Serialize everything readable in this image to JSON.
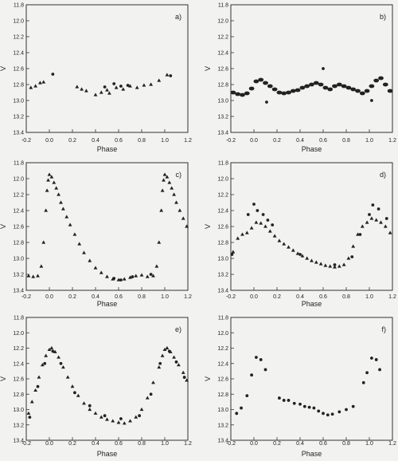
{
  "chart_data": [
    {
      "type": "scatter",
      "panel_label": "a)",
      "xlabel": "Phase",
      "ylabel": "V",
      "xlim": [
        -0.2,
        1.2
      ],
      "ylim": [
        13.4,
        11.8
      ],
      "y_inverted": true,
      "xticks": [
        "-0.2",
        "0.0",
        "0.2",
        "0.4",
        "0.6",
        "0.8",
        "1.0",
        "1.2"
      ],
      "yticks": [
        "11.8",
        "12.0",
        "12.2",
        "12.4",
        "12.6",
        "12.8",
        "13.0",
        "13.2",
        "13.4"
      ],
      "series": [
        {
          "marker": "triangle",
          "x": [
            -0.16,
            -0.12,
            -0.08,
            -0.05,
            0.24,
            0.28,
            0.32,
            0.4,
            0.45,
            0.5,
            0.52,
            0.58,
            0.64,
            0.7,
            0.76,
            0.82,
            0.88,
            0.95,
            1.02
          ],
          "y": [
            12.84,
            12.82,
            12.78,
            12.77,
            12.83,
            12.86,
            12.88,
            12.93,
            12.9,
            12.87,
            12.91,
            12.84,
            12.86,
            12.82,
            12.84,
            12.81,
            12.8,
            12.75,
            12.68
          ]
        },
        {
          "marker": "dot",
          "x": [
            0.03,
            0.48,
            0.56,
            0.62,
            0.68,
            1.05
          ],
          "y": [
            12.67,
            12.83,
            12.79,
            12.82,
            12.81,
            12.69
          ]
        }
      ]
    },
    {
      "type": "scatter",
      "panel_label": "b)",
      "xlabel": "Phase",
      "ylabel": "V",
      "xlim": [
        -0.2,
        1.2
      ],
      "ylim": [
        13.4,
        11.8
      ],
      "y_inverted": true,
      "xticks": [
        "-0.2",
        "0.0",
        "0.2",
        "0.4",
        "0.6",
        "0.8",
        "1.0",
        "1.2"
      ],
      "yticks": [
        "11.8",
        "12.0",
        "12.2",
        "12.4",
        "12.6",
        "12.8",
        "13.0",
        "13.2",
        "13.4"
      ],
      "series": [
        {
          "marker": "dense",
          "x": [
            -0.18,
            -0.14,
            -0.1,
            -0.06,
            -0.02,
            0.02,
            0.06,
            0.1,
            0.14,
            0.18,
            0.22,
            0.26,
            0.3,
            0.34,
            0.38,
            0.42,
            0.46,
            0.5,
            0.54,
            0.58,
            0.62,
            0.66,
            0.7,
            0.74,
            0.78,
            0.82,
            0.86,
            0.9,
            0.94,
            0.98,
            1.02,
            1.06,
            1.1,
            1.14,
            1.18
          ],
          "y": [
            12.9,
            12.92,
            12.93,
            12.91,
            12.85,
            12.76,
            12.74,
            12.78,
            12.82,
            12.86,
            12.9,
            12.91,
            12.9,
            12.88,
            12.87,
            12.84,
            12.82,
            12.8,
            12.78,
            12.8,
            12.84,
            12.86,
            12.82,
            12.8,
            12.82,
            12.84,
            12.86,
            12.88,
            12.91,
            12.88,
            12.82,
            12.75,
            12.72,
            12.8,
            12.88
          ]
        },
        {
          "marker": "dot",
          "x": [
            0.11,
            0.6,
            1.02
          ],
          "y": [
            13.02,
            12.6,
            13.0
          ]
        }
      ]
    },
    {
      "type": "scatter",
      "panel_label": "c)",
      "xlabel": "Phase",
      "ylabel": "V",
      "xlim": [
        -0.2,
        1.2
      ],
      "ylim": [
        13.4,
        11.8
      ],
      "y_inverted": true,
      "xticks": [
        "-0.2",
        "0.0",
        "0.2",
        "0.4",
        "0.6",
        "0.8",
        "1.0",
        "1.2"
      ],
      "yticks": [
        "11.8",
        "12.0",
        "12.2",
        "12.4",
        "12.6",
        "12.8",
        "13.0",
        "13.2",
        "13.4"
      ],
      "series": [
        {
          "marker": "triangle",
          "x": [
            -0.18,
            -0.14,
            -0.1,
            -0.07,
            -0.05,
            -0.03,
            -0.02,
            -0.01,
            0.0,
            0.02,
            0.04,
            0.06,
            0.08,
            0.1,
            0.12,
            0.15,
            0.18,
            0.22,
            0.26,
            0.3,
            0.35,
            0.4,
            0.45,
            0.5,
            0.55,
            0.6,
            0.65,
            0.7,
            0.75,
            0.8,
            0.85,
            0.9,
            0.93,
            0.95,
            0.97,
            0.98,
            0.99,
            1.0,
            1.02,
            1.04,
            1.06,
            1.08,
            1.1,
            1.13,
            1.16,
            1.19
          ],
          "y": [
            13.22,
            13.23,
            13.22,
            13.1,
            12.8,
            12.4,
            12.15,
            12.02,
            11.95,
            11.98,
            12.05,
            12.12,
            12.2,
            12.3,
            12.38,
            12.48,
            12.58,
            12.7,
            12.82,
            12.93,
            13.03,
            13.12,
            13.18,
            13.23,
            13.26,
            13.27,
            13.26,
            13.24,
            13.22,
            13.21,
            13.23,
            13.22,
            13.1,
            12.8,
            12.4,
            12.15,
            12.02,
            11.95,
            11.98,
            12.05,
            12.12,
            12.2,
            12.3,
            12.4,
            12.5,
            12.6
          ]
        },
        {
          "marker": "dot",
          "x": [
            0.56,
            0.62,
            0.72,
            0.88
          ],
          "y": [
            13.25,
            13.27,
            13.23,
            13.2
          ]
        }
      ]
    },
    {
      "type": "scatter",
      "panel_label": "d)",
      "xlabel": "Phase",
      "ylabel": "V",
      "xlim": [
        -0.2,
        1.2
      ],
      "ylim": [
        13.4,
        11.8
      ],
      "y_inverted": true,
      "xticks": [
        "-0.2",
        "0.0",
        "0.2",
        "0.4",
        "0.6",
        "0.8",
        "1.0",
        "1.2"
      ],
      "yticks": [
        "11.8",
        "12.0",
        "12.2",
        "12.4",
        "12.6",
        "12.8",
        "13.0",
        "13.2",
        "13.4"
      ],
      "series": [
        {
          "marker": "triangle",
          "x": [
            -0.18,
            -0.14,
            -0.1,
            -0.06,
            -0.02,
            0.02,
            0.06,
            0.1,
            0.14,
            0.18,
            0.22,
            0.26,
            0.3,
            0.34,
            0.38,
            0.42,
            0.46,
            0.5,
            0.54,
            0.58,
            0.62,
            0.66,
            0.7,
            0.74,
            0.78,
            0.82,
            0.86,
            0.9,
            0.94,
            0.98,
            1.02,
            1.06,
            1.1,
            1.14,
            1.18
          ],
          "y": [
            12.92,
            12.75,
            12.7,
            12.68,
            12.62,
            12.55,
            12.56,
            12.6,
            12.66,
            12.72,
            12.78,
            12.82,
            12.86,
            12.9,
            12.94,
            12.97,
            13.0,
            13.03,
            13.05,
            13.07,
            13.09,
            13.1,
            13.11,
            13.1,
            13.08,
            13.0,
            12.85,
            12.7,
            12.6,
            12.55,
            12.5,
            12.52,
            12.55,
            12.6,
            12.68
          ]
        },
        {
          "marker": "dot",
          "x": [
            -0.19,
            -0.05,
            0.0,
            0.03,
            0.08,
            0.12,
            0.16,
            0.4,
            0.7,
            0.85,
            0.92,
            1.0,
            1.03,
            1.08,
            1.15
          ],
          "y": [
            12.95,
            12.45,
            12.32,
            12.4,
            12.45,
            12.52,
            12.58,
            12.95,
            13.08,
            12.98,
            12.7,
            12.45,
            12.33,
            12.38,
            12.5
          ]
        }
      ]
    },
    {
      "type": "scatter",
      "panel_label": "e)",
      "xlabel": "Phase",
      "ylabel": "V",
      "xlim": [
        -0.2,
        1.2
      ],
      "ylim": [
        13.4,
        11.8
      ],
      "y_inverted": true,
      "xticks": [
        "-0.2",
        "0.0",
        "0.2",
        "0.4",
        "0.6",
        "0.8",
        "1.0",
        "1.2"
      ],
      "yticks": [
        "11.8",
        "12.0",
        "12.2",
        "12.4",
        "12.6",
        "12.8",
        "13.0",
        "13.2",
        "13.4"
      ],
      "series": [
        {
          "marker": "triangle",
          "x": [
            -0.18,
            -0.15,
            -0.12,
            -0.09,
            -0.06,
            -0.03,
            0.0,
            0.02,
            0.05,
            0.08,
            0.12,
            0.16,
            0.2,
            0.25,
            0.3,
            0.35,
            0.4,
            0.45,
            0.5,
            0.55,
            0.6,
            0.65,
            0.7,
            0.75,
            0.8,
            0.85,
            0.9,
            0.95,
            0.98,
            1.0,
            1.02,
            1.05,
            1.08,
            1.12,
            1.16,
            1.19
          ],
          "y": [
            13.05,
            12.9,
            12.75,
            12.58,
            12.42,
            12.3,
            12.22,
            12.2,
            12.25,
            12.32,
            12.45,
            12.58,
            12.7,
            12.82,
            12.92,
            13.0,
            13.05,
            13.1,
            13.13,
            13.15,
            13.17,
            13.18,
            13.15,
            13.1,
            13.0,
            12.85,
            12.65,
            12.45,
            12.3,
            12.22,
            12.2,
            12.25,
            12.32,
            12.42,
            12.52,
            12.62
          ]
        },
        {
          "marker": "dot",
          "x": [
            -0.17,
            -0.1,
            -0.04,
            0.03,
            0.1,
            0.22,
            0.35,
            0.48,
            0.62,
            0.78,
            0.88,
            0.96,
            1.04,
            1.1,
            1.17
          ],
          "y": [
            13.1,
            12.7,
            12.4,
            12.24,
            12.4,
            12.78,
            12.95,
            13.08,
            13.12,
            13.08,
            12.8,
            12.4,
            12.24,
            12.38,
            12.58
          ]
        }
      ]
    },
    {
      "type": "scatter",
      "panel_label": "f)",
      "xlabel": "Phase",
      "ylabel": "V",
      "xlim": [
        -0.2,
        1.2
      ],
      "ylim": [
        13.4,
        11.8
      ],
      "y_inverted": true,
      "xticks": [
        "-0.2",
        "0.0",
        "0.2",
        "0.4",
        "0.6",
        "0.8",
        "1.0",
        "1.2"
      ],
      "yticks": [
        "11.8",
        "12.0",
        "12.2",
        "12.4",
        "12.6",
        "12.8",
        "13.0",
        "13.2",
        "13.4"
      ],
      "series": [
        {
          "marker": "dot",
          "x": [
            -0.15,
            -0.11,
            -0.06,
            -0.02,
            0.02,
            0.06,
            0.1,
            0.22,
            0.26,
            0.3,
            0.35,
            0.4,
            0.44,
            0.48,
            0.52,
            0.56,
            0.6,
            0.64,
            0.68,
            0.74,
            0.8,
            0.86,
            0.95,
            0.98,
            1.02,
            1.06,
            1.09
          ],
          "y": [
            13.05,
            12.98,
            12.82,
            12.55,
            12.32,
            12.35,
            12.48,
            12.85,
            12.88,
            12.88,
            12.92,
            12.93,
            12.96,
            12.97,
            12.98,
            13.02,
            13.05,
            13.07,
            13.06,
            13.03,
            13.0,
            12.96,
            12.65,
            12.52,
            12.33,
            12.35,
            12.48
          ]
        }
      ]
    }
  ]
}
